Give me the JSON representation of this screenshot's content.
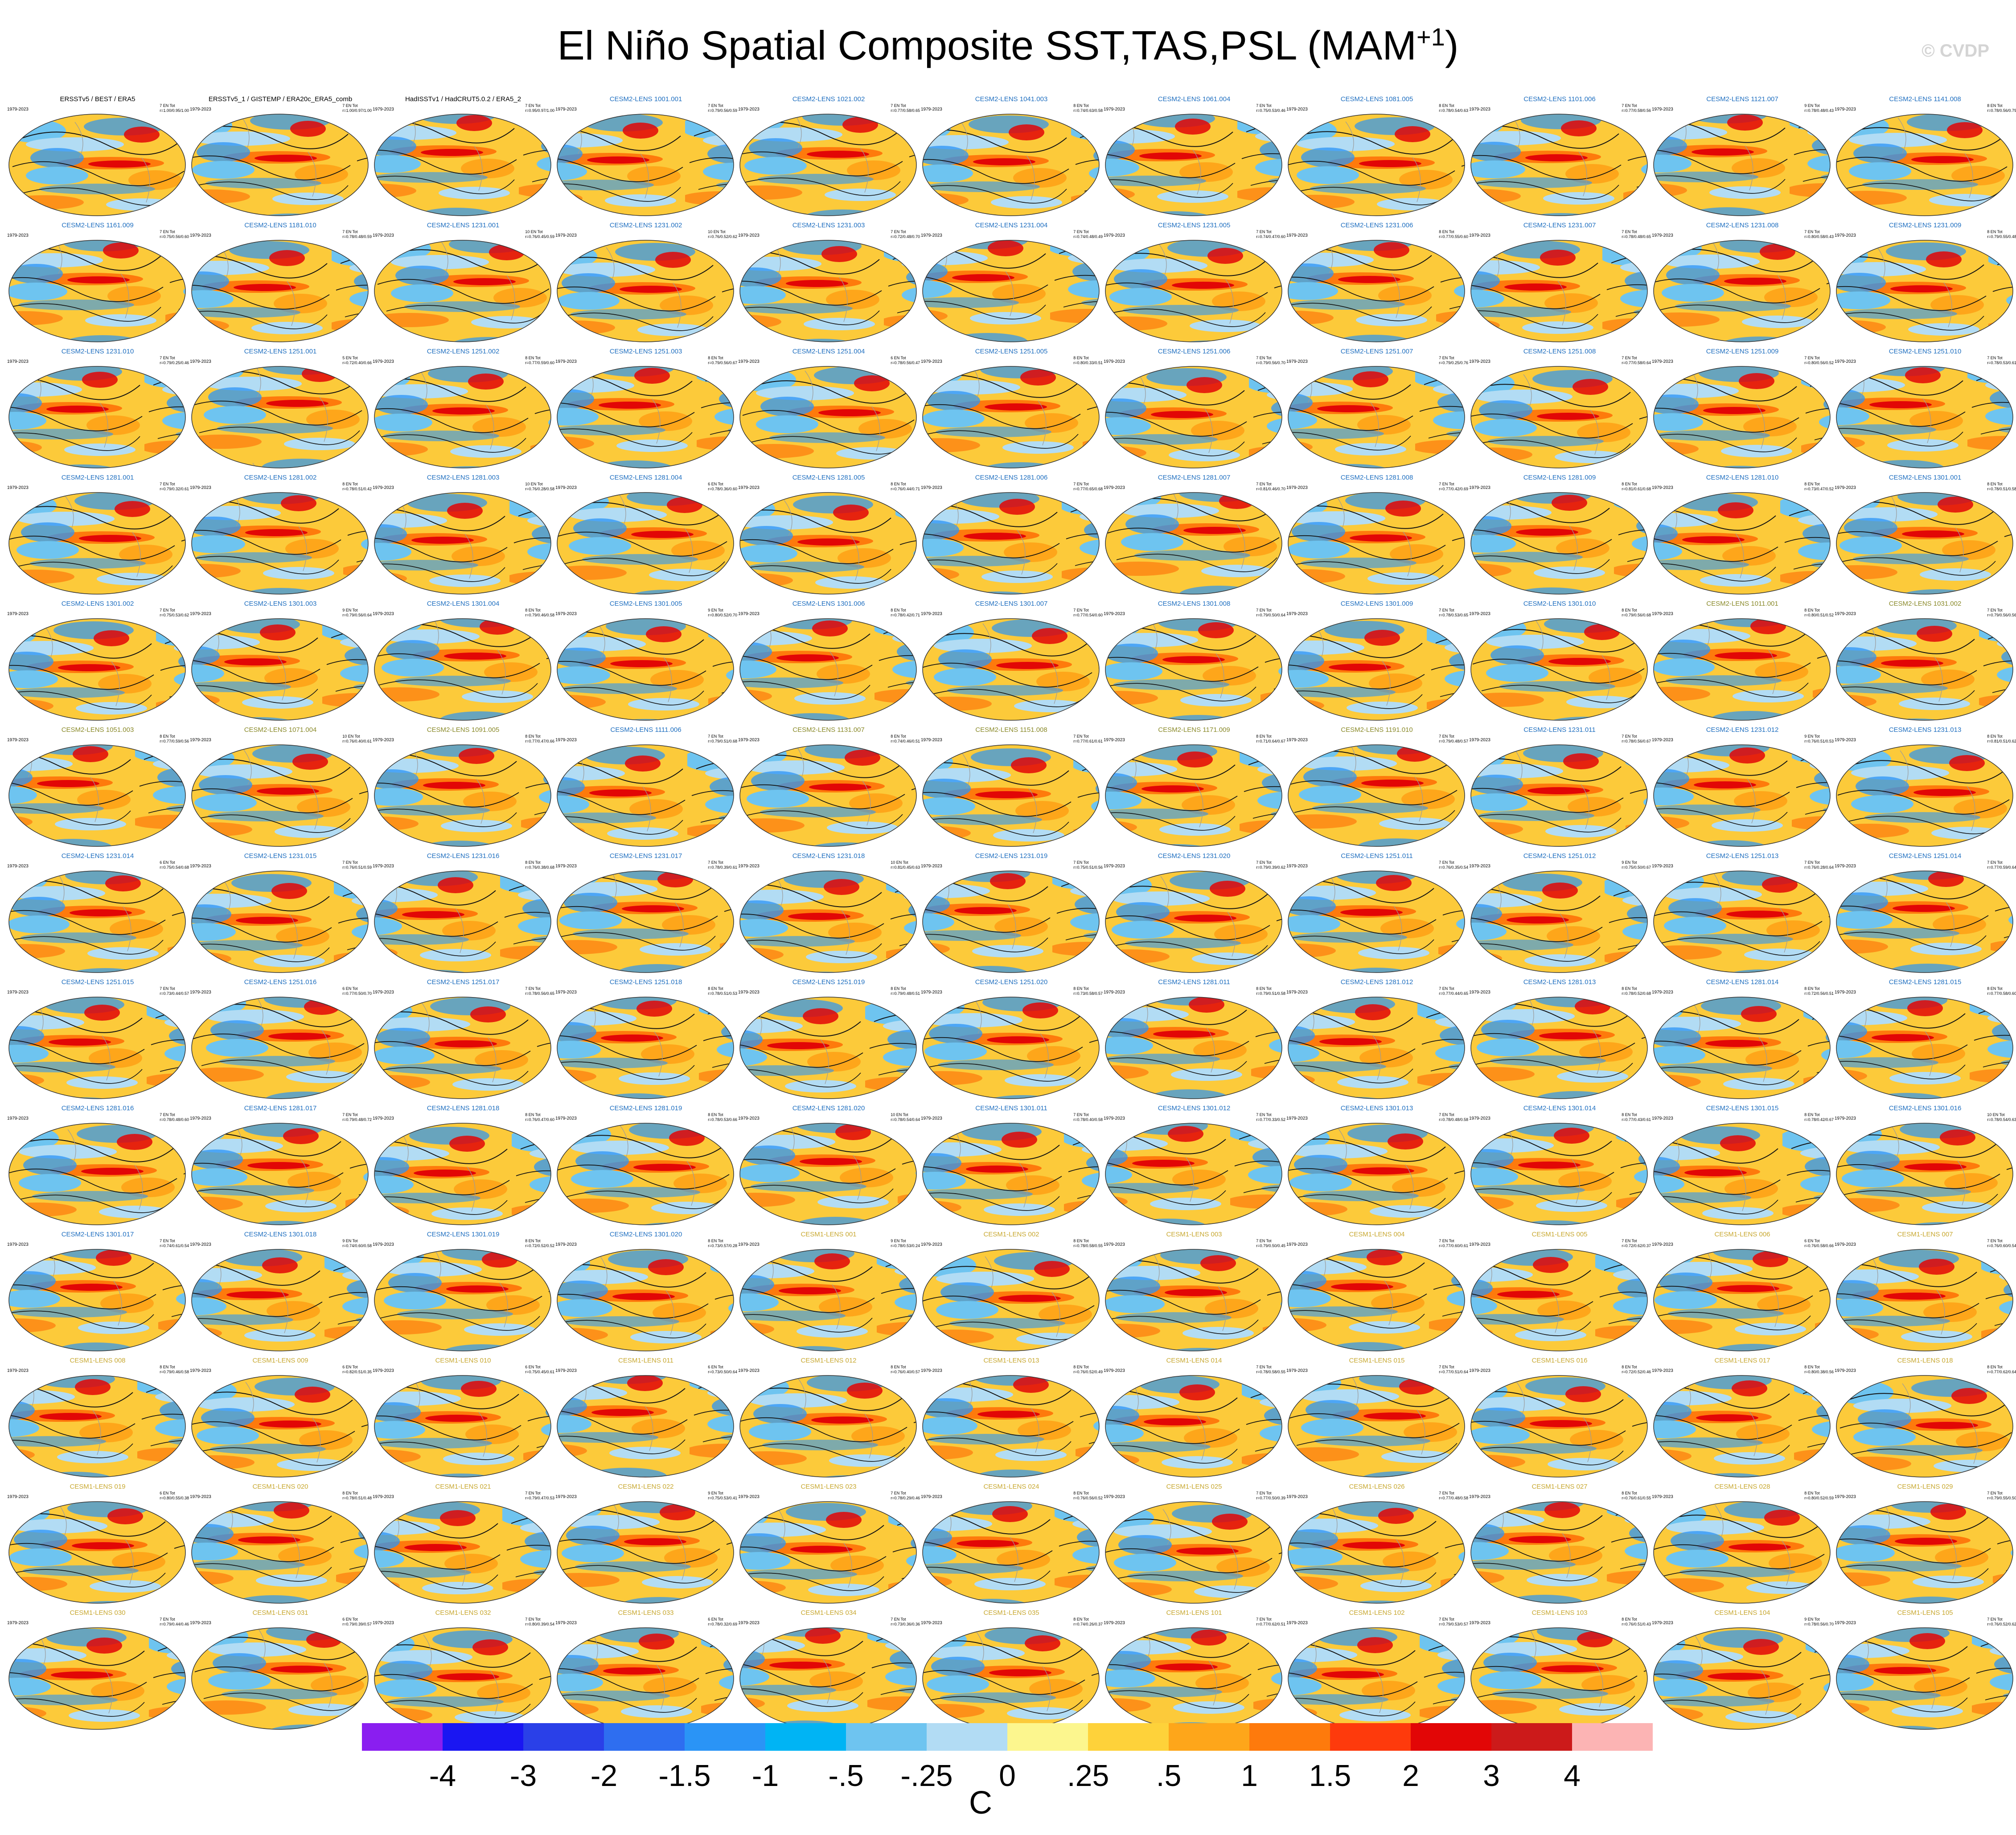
{
  "title": "El Niño Spatial Composite SST,TAS,PSL (MAM",
  "title_sup": "+1",
  "title_close": ")",
  "copyright": "© CVDP",
  "panel_years": "1979-2023",
  "chart_data": {
    "type": "heatmap",
    "description_kind": "map panel grid",
    "rows": 13,
    "cols": 11,
    "panels": [
      {
        "name": "ERSSTv5 / BEST / ERA5",
        "stats": "7 EN Tot\nr=1.00/0.95/1.00",
        "group": "obs"
      },
      {
        "name": "ERSSTv5_1 / GISTEMP / ERA20c_ERA5_comb",
        "stats": "7 EN Tot\nr=1.00/0.97/1.00",
        "group": "obs"
      },
      {
        "name": "HadISSTv1 / HadCRUT5.0.2 / ERA5_2",
        "stats": "7 EN Tot\nr=0.95/0.97/1.00",
        "group": "obs"
      },
      {
        "name": "CESM2-LENS 1001.001",
        "stats": "7 EN Tot\nr=0.79/0.56/0.59",
        "group": "cesm2"
      },
      {
        "name": "CESM2-LENS 1021.002",
        "stats": "7 EN Tot\nr=0.77/0.58/0.65",
        "group": "cesm2"
      },
      {
        "name": "CESM2-LENS 1041.003",
        "stats": "8 EN Tot\nr=0.74/0.63/0.58",
        "group": "cesm2"
      },
      {
        "name": "CESM2-LENS 1061.004",
        "stats": "7 EN Tot\nr=0.75/0.53/0.46",
        "group": "cesm2"
      },
      {
        "name": "CESM2-LENS 1081.005",
        "stats": "8 EN Tot\nr=0.78/0.54/0.63",
        "group": "cesm2"
      },
      {
        "name": "CESM2-LENS 1101.006",
        "stats": "7 EN Tot\nr=0.77/0.58/0.56",
        "group": "cesm2"
      },
      {
        "name": "CESM2-LENS 1121.007",
        "stats": "9 EN Tot\nr=0.78/0.48/0.43",
        "group": "cesm2"
      },
      {
        "name": "CESM2-LENS 1141.008",
        "stats": "8 EN Tot\nr=0.78/0.56/0.79",
        "group": "cesm2"
      },
      {
        "name": "CESM2-LENS 1161.009",
        "stats": "7 EN Tot\nr=0.75/0.56/0.60",
        "group": "cesm2"
      },
      {
        "name": "CESM2-LENS 1181.010",
        "stats": "7 EN Tot\nr=0.78/0.48/0.59",
        "group": "cesm2"
      },
      {
        "name": "CESM2-LENS 1231.001",
        "stats": "10 EN Tot\nr=0.76/0.45/0.59",
        "group": "cesm2"
      },
      {
        "name": "CESM2-LENS 1231.002",
        "stats": "10 EN Tot\nr=0.76/0.52/0.62",
        "group": "cesm2"
      },
      {
        "name": "CESM2-LENS 1231.003",
        "stats": "7 EN Tot\nr=0.72/0.48/0.70",
        "group": "cesm2"
      },
      {
        "name": "CESM2-LENS 1231.004",
        "stats": "7 EN Tot\nr=0.74/0.48/0.49",
        "group": "cesm2"
      },
      {
        "name": "CESM2-LENS 1231.005",
        "stats": "7 EN Tot\nr=0.74/0.47/0.60",
        "group": "cesm2"
      },
      {
        "name": "CESM2-LENS 1231.006",
        "stats": "8 EN Tot\nr=0.77/0.55/0.60",
        "group": "cesm2"
      },
      {
        "name": "CESM2-LENS 1231.007",
        "stats": "7 EN Tot\nr=0.78/0.48/0.65",
        "group": "cesm2"
      },
      {
        "name": "CESM2-LENS 1231.008",
        "stats": "7 EN Tot\nr=0.80/0.58/0.43",
        "group": "cesm2"
      },
      {
        "name": "CESM2-LENS 1231.009",
        "stats": "8 EN Tot\nr=0.79/0.55/0.48",
        "group": "cesm2"
      },
      {
        "name": "CESM2-LENS 1231.010",
        "stats": "7 EN Tot\nr=0.79/0.25/0.46",
        "group": "cesm2"
      },
      {
        "name": "CESM2-LENS 1251.001",
        "stats": "5 EN Tot\nr=0.72/0.40/0.66",
        "group": "cesm2"
      },
      {
        "name": "CESM2-LENS 1251.002",
        "stats": "8 EN Tot\nr=0.77/0.59/0.60",
        "group": "cesm2"
      },
      {
        "name": "CESM2-LENS 1251.003",
        "stats": "8 EN Tot\nr=0.79/0.56/0.67",
        "group": "cesm2"
      },
      {
        "name": "CESM2-LENS 1251.004",
        "stats": "6 EN Tot\nr=0.78/0.56/0.47",
        "group": "cesm2"
      },
      {
        "name": "CESM2-LENS 1251.005",
        "stats": "8 EN Tot\nr=0.80/0.33/0.51",
        "group": "cesm2"
      },
      {
        "name": "CESM2-LENS 1251.006",
        "stats": "7 EN Tot\nr=0.79/0.56/0.70",
        "group": "cesm2"
      },
      {
        "name": "CESM2-LENS 1251.007",
        "stats": "7 EN Tot\nr=0.79/0.25/0.76",
        "group": "cesm2"
      },
      {
        "name": "CESM2-LENS 1251.008",
        "stats": "7 EN Tot\nr=0.77/0.58/0.64",
        "group": "cesm2"
      },
      {
        "name": "CESM2-LENS 1251.009",
        "stats": "7 EN Tot\nr=0.80/0.56/0.52",
        "group": "cesm2"
      },
      {
        "name": "CESM2-LENS 1251.010",
        "stats": "7 EN Tot\nr=0.78/0.53/0.61",
        "group": "cesm2"
      },
      {
        "name": "CESM2-LENS 1281.001",
        "stats": "7 EN Tot\nr=0.79/0.32/0.61",
        "group": "cesm2"
      },
      {
        "name": "CESM2-LENS 1281.002",
        "stats": "8 EN Tot\nr=0.78/0.51/0.42",
        "group": "cesm2"
      },
      {
        "name": "CESM2-LENS 1281.003",
        "stats": "10 EN Tot\nr=0.76/0.28/0.58",
        "group": "cesm2"
      },
      {
        "name": "CESM2-LENS 1281.004",
        "stats": "6 EN Tot\nr=0.78/0.36/0.60",
        "group": "cesm2"
      },
      {
        "name": "CESM2-LENS 1281.005",
        "stats": "8 EN Tot\nr=0.76/0.44/0.71",
        "group": "cesm2"
      },
      {
        "name": "CESM2-LENS 1281.006",
        "stats": "7 EN Tot\nr=0.77/0.65/0.68",
        "group": "cesm2"
      },
      {
        "name": "CESM2-LENS 1281.007",
        "stats": "7 EN Tot\nr=0.81/0.46/0.70",
        "group": "cesm2"
      },
      {
        "name": "CESM2-LENS 1281.008",
        "stats": "7 EN Tot\nr=0.77/0.42/0.69",
        "group": "cesm2"
      },
      {
        "name": "CESM2-LENS 1281.009",
        "stats": "8 EN Tot\nr=0.81/0.61/0.68",
        "group": "cesm2"
      },
      {
        "name": "CESM2-LENS 1281.010",
        "stats": "8 EN Tot\nr=0.73/0.47/0.52",
        "group": "cesm2"
      },
      {
        "name": "CESM2-LENS 1301.001",
        "stats": "8 EN Tot\nr=0.78/0.51/0.58",
        "group": "cesm2"
      },
      {
        "name": "CESM2-LENS 1301.002",
        "stats": "7 EN Tot\nr=0.75/0.53/0.62",
        "group": "cesm2"
      },
      {
        "name": "CESM2-LENS 1301.003",
        "stats": "9 EN Tot\nr=0.79/0.56/0.64",
        "group": "cesm2"
      },
      {
        "name": "CESM2-LENS 1301.004",
        "stats": "8 EN Tot\nr=0.79/0.46/0.58",
        "group": "cesm2"
      },
      {
        "name": "CESM2-LENS 1301.005",
        "stats": "9 EN Tot\nr=0.80/0.52/0.70",
        "group": "cesm2"
      },
      {
        "name": "CESM2-LENS 1301.006",
        "stats": "8 EN Tot\nr=0.78/0.42/0.71",
        "group": "cesm2"
      },
      {
        "name": "CESM2-LENS 1301.007",
        "stats": "7 EN Tot\nr=0.77/0.54/0.60",
        "group": "cesm2"
      },
      {
        "name": "CESM2-LENS 1301.008",
        "stats": "7 EN Tot\nr=0.79/0.50/0.64",
        "group": "cesm2"
      },
      {
        "name": "CESM2-LENS 1301.009",
        "stats": "7 EN Tot\nr=0.78/0.53/0.65",
        "group": "cesm2"
      },
      {
        "name": "CESM2-LENS 1301.010",
        "stats": "8 EN Tot\nr=0.79/0.56/0.68",
        "group": "cesm2"
      },
      {
        "name": "CESM2-LENS 1011.001",
        "stats": "8 EN Tot\nr=0.80/0.51/0.52",
        "group": "cesm2-olive"
      },
      {
        "name": "CESM2-LENS 1031.002",
        "stats": "7 EN Tot\nr=0.79/0.56/0.56",
        "group": "cesm2-olive"
      },
      {
        "name": "CESM2-LENS 1051.003",
        "stats": "8 EN Tot\nr=0.77/0.59/0.56",
        "group": "cesm2-olive"
      },
      {
        "name": "CESM2-LENS 1071.004",
        "stats": "10 EN Tot\nr=0.76/0.40/0.61",
        "group": "cesm2-olive"
      },
      {
        "name": "CESM2-LENS 1091.005",
        "stats": "8 EN Tot\nr=0.77/0.47/0.66",
        "group": "cesm2-olive"
      },
      {
        "name": "CESM2-LENS 1111.006",
        "stats": "7 EN Tot\nr=0.79/0.51/0.68",
        "group": "cesm2"
      },
      {
        "name": "CESM2-LENS 1131.007",
        "stats": "8 EN Tot\nr=0.74/0.46/0.51",
        "group": "cesm2-olive"
      },
      {
        "name": "CESM2-LENS 1151.008",
        "stats": "7 EN Tot\nr=0.77/0.61/0.61",
        "group": "cesm2-olive"
      },
      {
        "name": "CESM2-LENS 1171.009",
        "stats": "8 EN Tot\nr=0.71/0.64/0.67",
        "group": "cesm2-olive"
      },
      {
        "name": "CESM2-LENS 1191.010",
        "stats": "7 EN Tot\nr=0.79/0.48/0.57",
        "group": "cesm2-olive"
      },
      {
        "name": "CESM2-LENS 1231.011",
        "stats": "7 EN Tot\nr=0.78/0.56/0.67",
        "group": "cesm2"
      },
      {
        "name": "CESM2-LENS 1231.012",
        "stats": "9 EN Tot\nr=0.76/0.51/0.53",
        "group": "cesm2"
      },
      {
        "name": "CESM2-LENS 1231.013",
        "stats": "8 EN Tot\nr=0.81/0.51/0.62",
        "group": "cesm2"
      },
      {
        "name": "CESM2-LENS 1231.014",
        "stats": "6 EN Tot\nr=0.75/0.54/0.68",
        "group": "cesm2"
      },
      {
        "name": "CESM2-LENS 1231.015",
        "stats": "7 EN Tot\nr=0.76/0.51/0.59",
        "group": "cesm2"
      },
      {
        "name": "CESM2-LENS 1231.016",
        "stats": "8 EN Tot\nr=0.76/0.38/0.68",
        "group": "cesm2"
      },
      {
        "name": "CESM2-LENS 1231.017",
        "stats": "7 EN Tot\nr=0.78/0.39/0.61",
        "group": "cesm2"
      },
      {
        "name": "CESM2-LENS 1231.018",
        "stats": "10 EN Tot\nr=0.81/0.45/0.63",
        "group": "cesm2"
      },
      {
        "name": "CESM2-LENS 1231.019",
        "stats": "7 EN Tot\nr=0.75/0.51/0.56",
        "group": "cesm2"
      },
      {
        "name": "CESM2-LENS 1231.020",
        "stats": "7 EN Tot\nr=0.79/0.39/0.62",
        "group": "cesm2"
      },
      {
        "name": "CESM2-LENS 1251.011",
        "stats": "7 EN Tot\nr=0.76/0.35/0.54",
        "group": "cesm2"
      },
      {
        "name": "CESM2-LENS 1251.012",
        "stats": "9 EN Tot\nr=0.75/0.50/0.67",
        "group": "cesm2"
      },
      {
        "name": "CESM2-LENS 1251.013",
        "stats": "7 EN Tot\nr=0.76/0.28/0.64",
        "group": "cesm2"
      },
      {
        "name": "CESM2-LENS 1251.014",
        "stats": "7 EN Tot\nr=0.77/0.59/0.64",
        "group": "cesm2"
      },
      {
        "name": "CESM2-LENS 1251.015",
        "stats": "7 EN Tot\nr=0.73/0.44/0.57",
        "group": "cesm2"
      },
      {
        "name": "CESM2-LENS 1251.016",
        "stats": "6 EN Tot\nr=0.77/0.50/0.70",
        "group": "cesm2"
      },
      {
        "name": "CESM2-LENS 1251.017",
        "stats": "7 EN Tot\nr=0.78/0.56/0.65",
        "group": "cesm2"
      },
      {
        "name": "CESM2-LENS 1251.018",
        "stats": "8 EN Tot\nr=0.78/0.51/0.53",
        "group": "cesm2"
      },
      {
        "name": "CESM2-LENS 1251.019",
        "stats": "8 EN Tot\nr=0.79/0.48/0.51",
        "group": "cesm2"
      },
      {
        "name": "CESM2-LENS 1251.020",
        "stats": "8 EN Tot\nr=0.73/0.58/0.57",
        "group": "cesm2"
      },
      {
        "name": "CESM2-LENS 1281.011",
        "stats": "8 EN Tot\nr=0.79/0.51/0.58",
        "group": "cesm2"
      },
      {
        "name": "CESM2-LENS 1281.012",
        "stats": "7 EN Tot\nr=0.77/0.44/0.65",
        "group": "cesm2"
      },
      {
        "name": "CESM2-LENS 1281.013",
        "stats": "8 EN Tot\nr=0.78/0.52/0.68",
        "group": "cesm2"
      },
      {
        "name": "CESM2-LENS 1281.014",
        "stats": "8 EN Tot\nr=0.72/0.56/0.51",
        "group": "cesm2"
      },
      {
        "name": "CESM2-LENS 1281.015",
        "stats": "8 EN Tot\nr=0.77/0.58/0.60",
        "group": "cesm2"
      },
      {
        "name": "CESM2-LENS 1281.016",
        "stats": "7 EN Tot\nr=0.78/0.48/0.60",
        "group": "cesm2"
      },
      {
        "name": "CESM2-LENS 1281.017",
        "stats": "7 EN Tot\nr=0.79/0.48/0.72",
        "group": "cesm2"
      },
      {
        "name": "CESM2-LENS 1281.018",
        "stats": "8 EN Tot\nr=0.76/0.47/0.60",
        "group": "cesm2"
      },
      {
        "name": "CESM2-LENS 1281.019",
        "stats": "8 EN Tot\nr=0.78/0.53/0.66",
        "group": "cesm2"
      },
      {
        "name": "CESM2-LENS 1281.020",
        "stats": "10 EN Tot\nr=0.78/0.54/0.64",
        "group": "cesm2"
      },
      {
        "name": "CESM2-LENS 1301.011",
        "stats": "7 EN Tot\nr=0.78/0.40/0.58",
        "group": "cesm2"
      },
      {
        "name": "CESM2-LENS 1301.012",
        "stats": "7 EN Tot\nr=0.77/0.33/0.52",
        "group": "cesm2"
      },
      {
        "name": "CESM2-LENS 1301.013",
        "stats": "7 EN Tot\nr=0.78/0.48/0.58",
        "group": "cesm2"
      },
      {
        "name": "CESM2-LENS 1301.014",
        "stats": "8 EN Tot\nr=0.77/0.43/0.61",
        "group": "cesm2"
      },
      {
        "name": "CESM2-LENS 1301.015",
        "stats": "8 EN Tot\nr=0.78/0.42/0.67",
        "group": "cesm2"
      },
      {
        "name": "CESM2-LENS 1301.016",
        "stats": "10 EN Tot\nr=0.78/0.54/0.63",
        "group": "cesm2"
      },
      {
        "name": "CESM2-LENS 1301.017",
        "stats": "7 EN Tot\nr=0.74/0.61/0.54",
        "group": "cesm2"
      },
      {
        "name": "CESM2-LENS 1301.018",
        "stats": "9 EN Tot\nr=0.74/0.60/0.58",
        "group": "cesm2"
      },
      {
        "name": "CESM2-LENS 1301.019",
        "stats": "8 EN Tot\nr=0.72/0.52/0.52",
        "group": "cesm2"
      },
      {
        "name": "CESM2-LENS 1301.020",
        "stats": "8 EN Tot\nr=0.73/0.57/0.28",
        "group": "cesm2"
      },
      {
        "name": "CESM1-LENS 001",
        "stats": "9 EN Tot\nr=0.78/0.53/0.24",
        "group": "cesm1"
      },
      {
        "name": "CESM1-LENS 002",
        "stats": "8 EN Tot\nr=0.78/0.58/0.55",
        "group": "cesm1"
      },
      {
        "name": "CESM1-LENS 003",
        "stats": "7 EN Tot\nr=0.79/0.50/0.45",
        "group": "cesm1"
      },
      {
        "name": "CESM1-LENS 004",
        "stats": "7 EN Tot\nr=0.77/0.60/0.61",
        "group": "cesm1"
      },
      {
        "name": "CESM1-LENS 005",
        "stats": "7 EN Tot\nr=0.72/0.62/0.37",
        "group": "cesm1"
      },
      {
        "name": "CESM1-LENS 006",
        "stats": "6 EN Tot\nr=0.76/0.58/0.66",
        "group": "cesm1"
      },
      {
        "name": "CESM1-LENS 007",
        "stats": "7 EN Tot\nr=0.76/0.60/0.54",
        "group": "cesm1"
      },
      {
        "name": "CESM1-LENS 008",
        "stats": "8 EN Tot\nr=0.79/0.46/0.58",
        "group": "cesm1"
      },
      {
        "name": "CESM1-LENS 009",
        "stats": "6 EN Tot\nr=0.82/0.51/0.35",
        "group": "cesm1"
      },
      {
        "name": "CESM1-LENS 010",
        "stats": "6 EN Tot\nr=0.75/0.45/0.61",
        "group": "cesm1"
      },
      {
        "name": "CESM1-LENS 011",
        "stats": "6 EN Tot\nr=0.73/0.50/0.64",
        "group": "cesm1"
      },
      {
        "name": "CESM1-LENS 012",
        "stats": "8 EN Tot\nr=0.76/0.40/0.57",
        "group": "cesm1"
      },
      {
        "name": "CESM1-LENS 013",
        "stats": "8 EN Tot\nr=0.76/0.52/0.49",
        "group": "cesm1"
      },
      {
        "name": "CESM1-LENS 014",
        "stats": "7 EN Tot\nr=0.78/0.58/0.55",
        "group": "cesm1"
      },
      {
        "name": "CESM1-LENS 015",
        "stats": "7 EN Tot\nr=0.77/0.51/0.64",
        "group": "cesm1"
      },
      {
        "name": "CESM1-LENS 016",
        "stats": "8 EN Tot\nr=0.72/0.52/0.46",
        "group": "cesm1"
      },
      {
        "name": "CESM1-LENS 017",
        "stats": "8 EN Tot\nr=0.80/0.38/0.56",
        "group": "cesm1"
      },
      {
        "name": "CESM1-LENS 018",
        "stats": "8 EN Tot\nr=0.77/0.62/0.64",
        "group": "cesm1"
      },
      {
        "name": "CESM1-LENS 019",
        "stats": "6 EN Tot\nr=0.80/0.55/0.38",
        "group": "cesm1"
      },
      {
        "name": "CESM1-LENS 020",
        "stats": "8 EN Tot\nr=0.78/0.51/0.48",
        "group": "cesm1"
      },
      {
        "name": "CESM1-LENS 021",
        "stats": "7 EN Tot\nr=0.79/0.47/0.53",
        "group": "cesm1"
      },
      {
        "name": "CESM1-LENS 022",
        "stats": "9 EN Tot\nr=0.75/0.53/0.41",
        "group": "cesm1"
      },
      {
        "name": "CESM1-LENS 023",
        "stats": "7 EN Tot\nr=0.78/0.29/0.46",
        "group": "cesm1"
      },
      {
        "name": "CESM1-LENS 024",
        "stats": "8 EN Tot\nr=0.76/0.56/0.52",
        "group": "cesm1"
      },
      {
        "name": "CESM1-LENS 025",
        "stats": "7 EN Tot\nr=0.77/0.50/0.39",
        "group": "cesm1"
      },
      {
        "name": "CESM1-LENS 026",
        "stats": "7 EN Tot\nr=0.77/0.48/0.58",
        "group": "cesm1"
      },
      {
        "name": "CESM1-LENS 027",
        "stats": "8 EN Tot\nr=0.76/0.61/0.55",
        "group": "cesm1"
      },
      {
        "name": "CESM1-LENS 028",
        "stats": "8 EN Tot\nr=0.80/0.52/0.59",
        "group": "cesm1"
      },
      {
        "name": "CESM1-LENS 029",
        "stats": "7 EN Tot\nr=0.79/0.55/0.50",
        "group": "cesm1"
      },
      {
        "name": "CESM1-LENS 030",
        "stats": "7 EN Tot\nr=0.79/0.44/0.46",
        "group": "cesm1"
      },
      {
        "name": "CESM1-LENS 031",
        "stats": "6 EN Tot\nr=0.79/0.39/0.57",
        "group": "cesm1"
      },
      {
        "name": "CESM1-LENS 032",
        "stats": "7 EN Tot\nr=0.80/0.39/0.54",
        "group": "cesm1"
      },
      {
        "name": "CESM1-LENS 033",
        "stats": "6 EN Tot\nr=0.78/0.32/0.69",
        "group": "cesm1"
      },
      {
        "name": "CESM1-LENS 034",
        "stats": "7 EN Tot\nr=0.73/0.36/0.36",
        "group": "cesm1"
      },
      {
        "name": "CESM1-LENS 035",
        "stats": "8 EN Tot\nr=0.74/0.26/0.37",
        "group": "cesm1"
      },
      {
        "name": "CESM1-LENS 101",
        "stats": "7 EN Tot\nr=0.77/0.62/0.51",
        "group": "cesm1"
      },
      {
        "name": "CESM1-LENS 102",
        "stats": "7 EN Tot\nr=0.79/0.53/0.57",
        "group": "cesm1"
      },
      {
        "name": "CESM1-LENS 103",
        "stats": "8 EN Tot\nr=0.76/0.51/0.43",
        "group": "cesm1"
      },
      {
        "name": "CESM1-LENS 104",
        "stats": "9 EN Tot\nr=0.78/0.56/0.70",
        "group": "cesm1"
      },
      {
        "name": "CESM1-LENS 105",
        "stats": "7 EN Tot\nr=0.76/0.52/0.62",
        "group": "cesm1"
      }
    ],
    "colorbar": {
      "colors": [
        "#8a1ef0",
        "#1a16f2",
        "#2a40e8",
        "#2e6ef0",
        "#2a94f6",
        "#00b4f4",
        "#6ec4f0",
        "#b2dcf4",
        "#fcf68e",
        "#fed23a",
        "#fea61a",
        "#fe7a0c",
        "#fe3a0c",
        "#e20606",
        "#cc1a1a",
        "#fcb4b4"
      ],
      "ticks": [
        "-4",
        "-3",
        "-2",
        "-1.5",
        "-1",
        "-.5",
        "-.25",
        "0",
        ".25",
        ".5",
        "1",
        "1.5",
        "2",
        "3",
        "4"
      ],
      "unit": "C"
    },
    "group_colors": {
      "obs": "#000000",
      "cesm2": "#1f6fc0",
      "cesm2-olive": "#8a8a2a",
      "cesm1": "#c8a830"
    }
  }
}
